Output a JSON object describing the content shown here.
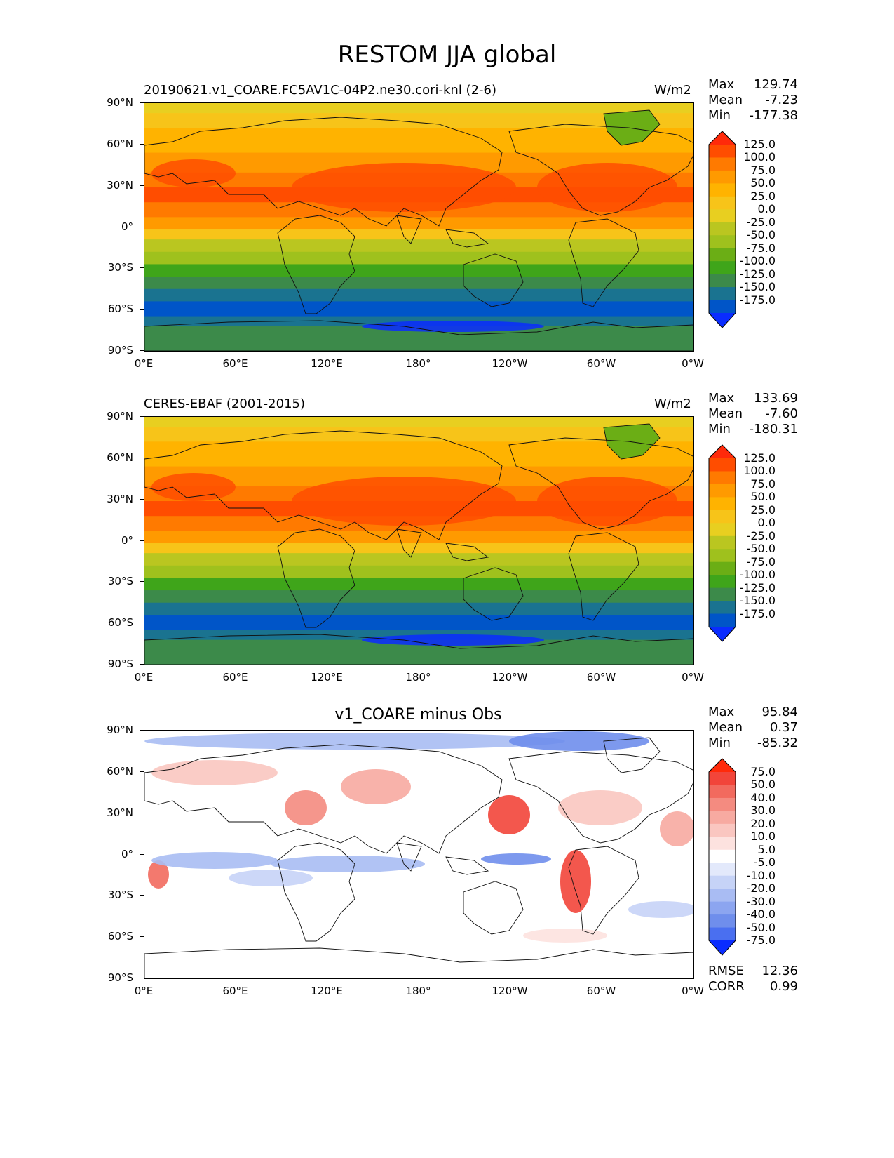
{
  "figure_title": "RESTOM JJA global",
  "panels": [
    {
      "id": "test",
      "title_left": "20190621.v1_COARE.FC5AV1C-04P2.ne30.cori-knl (2-6)",
      "title_center": "",
      "units": "W/m2",
      "stats": [
        {
          "label": "Max",
          "value": "129.74"
        },
        {
          "label": "Mean",
          "value": "-7.23"
        },
        {
          "label": "Min",
          "value": "-177.38"
        }
      ],
      "colorbar": {
        "labels": [
          "125.0",
          "100.0",
          "75.0",
          "50.0",
          "25.0",
          "0.0",
          "-25.0",
          "-50.0",
          "-75.0",
          "-100.0",
          "-125.0",
          "-150.0",
          "-175.0"
        ],
        "colors": [
          "#ff2a0a",
          "#ff4d00",
          "#ff7a00",
          "#ff9a00",
          "#ffb300",
          "#f7c419",
          "#e8cf20",
          "#bac620",
          "#9fc11d",
          "#6bae15",
          "#3fa51a",
          "#3c8a4a",
          "#1a7390",
          "#0055c8",
          "#0a2cff"
        ]
      },
      "extra": []
    },
    {
      "id": "reference",
      "title_left": "CERES-EBAF (2001-2015)",
      "title_center": "",
      "units": "W/m2",
      "stats": [
        {
          "label": "Max",
          "value": "133.69"
        },
        {
          "label": "Mean",
          "value": "-7.60"
        },
        {
          "label": "Min",
          "value": "-180.31"
        }
      ],
      "colorbar": {
        "labels": [
          "125.0",
          "100.0",
          "75.0",
          "50.0",
          "25.0",
          "0.0",
          "-25.0",
          "-50.0",
          "-75.0",
          "-100.0",
          "-125.0",
          "-150.0",
          "-175.0"
        ],
        "colors": [
          "#ff2a0a",
          "#ff4d00",
          "#ff7a00",
          "#ff9a00",
          "#ffb300",
          "#f7c419",
          "#e8cf20",
          "#bac620",
          "#9fc11d",
          "#6bae15",
          "#3fa51a",
          "#3c8a4a",
          "#1a7390",
          "#0055c8",
          "#0a2cff"
        ]
      },
      "extra": []
    },
    {
      "id": "difference",
      "title_left": "",
      "title_center": "v1_COARE minus Obs",
      "units": "",
      "stats": [
        {
          "label": "Max",
          "value": "95.84"
        },
        {
          "label": "Mean",
          "value": "0.37"
        },
        {
          "label": "Min",
          "value": "-85.32"
        }
      ],
      "colorbar": {
        "labels": [
          "75.0",
          "50.0",
          "40.0",
          "30.0",
          "20.0",
          "10.0",
          "5.0",
          "-5.0",
          "-10.0",
          "-20.0",
          "-30.0",
          "-40.0",
          "-50.0",
          "-75.0"
        ],
        "colors": [
          "#ff2a0a",
          "#f2453a",
          "#f26a5e",
          "#f48b80",
          "#f7aaa1",
          "#fac6c0",
          "#fde2df",
          "#ffffff",
          "#e3e9fb",
          "#c6d3f7",
          "#a9bcf3",
          "#8ca5f0",
          "#6f8eec",
          "#4a6ff0",
          "#0a2cff"
        ]
      },
      "extra": [
        {
          "label": "RMSE",
          "value": "12.36"
        },
        {
          "label": "CORR",
          "value": "0.99"
        }
      ]
    }
  ],
  "axes": {
    "lat_ticks": [
      "90°N",
      "60°N",
      "30°N",
      "0°",
      "30°S",
      "60°S",
      "90°S"
    ],
    "lon_ticks": [
      "0°E",
      "60°E",
      "120°E",
      "180°",
      "120°W",
      "60°W",
      "0°W"
    ]
  }
}
